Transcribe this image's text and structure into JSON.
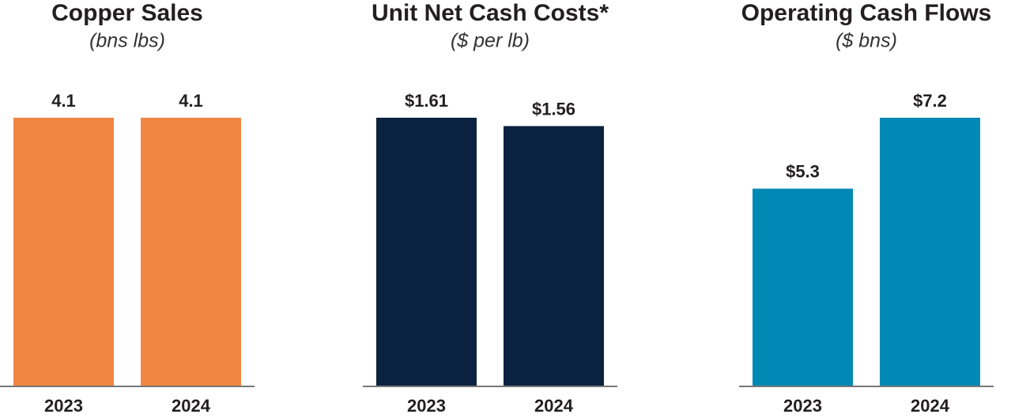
{
  "chart_data": [
    {
      "type": "bar",
      "title": "Copper Sales",
      "subtitle": "(bns lbs)",
      "categories": [
        "2023",
        "2024"
      ],
      "values": [
        4.1,
        4.1
      ],
      "color": "#f18542"
    },
    {
      "type": "bar",
      "title": "Unit Net Cash Costs*",
      "subtitle": "($ per lb)",
      "categories": [
        "2023",
        "2024"
      ],
      "values": [
        1.61,
        1.56
      ],
      "value_labels": [
        "$1.61",
        "$1.56"
      ],
      "color": "#0a2240"
    },
    {
      "type": "bar",
      "title": "Operating Cash Flows",
      "subtitle": "($ bns)",
      "categories": [
        "2023",
        "2024"
      ],
      "values": [
        5.3,
        7.2
      ],
      "value_labels": [
        "$5.3",
        "$7.2"
      ],
      "color": "#0089b5"
    }
  ]
}
